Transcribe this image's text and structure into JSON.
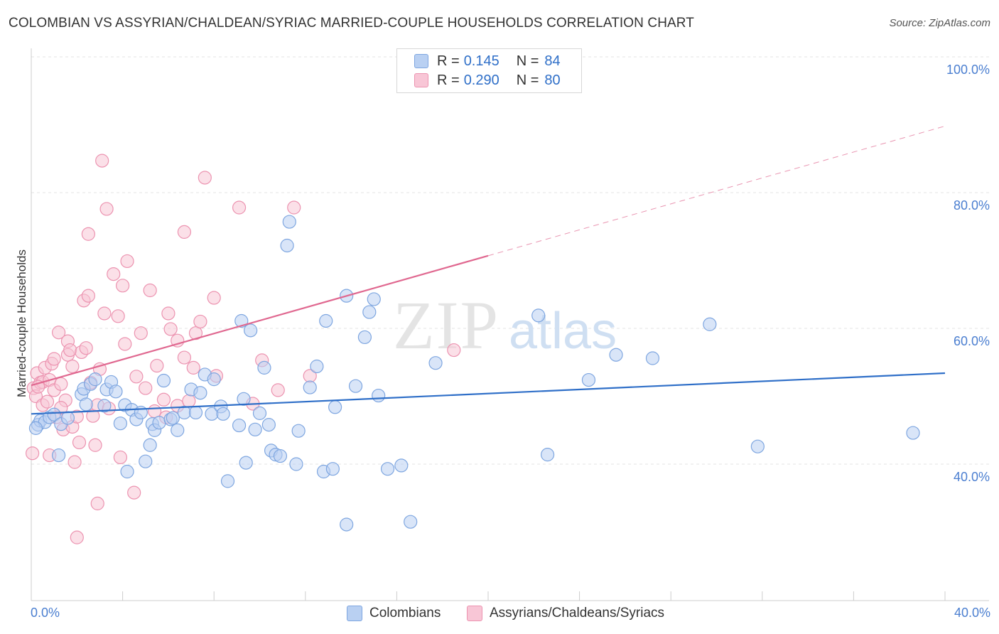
{
  "header": {
    "title": "COLOMBIAN VS ASSYRIAN/CHALDEAN/SYRIAC MARRIED-COUPLE HOUSEHOLDS CORRELATION CHART",
    "source": "Source: ZipAtlas.com"
  },
  "watermark": {
    "zip": "ZIP",
    "atlas": "atlas"
  },
  "colors": {
    "blue_fill": "#b9d0f2",
    "blue_stroke": "#7ea6e0",
    "blue_line": "#2f6fc8",
    "pink_fill": "#f8c6d6",
    "pink_stroke": "#ec93b0",
    "pink_line": "#e06890",
    "tick_text": "#4a7ed0"
  },
  "legend": {
    "rows": [
      {
        "r_label": "R =",
        "r_value": "0.145",
        "n_label": "N =",
        "n_value": "84"
      },
      {
        "r_label": "R =",
        "r_value": "0.290",
        "n_label": "N =",
        "n_value": "80"
      }
    ]
  },
  "bottom_legend": {
    "series1": "Colombians",
    "series2": "Assyrians/Chaldeans/Syriacs"
  },
  "chart_data": {
    "type": "scatter",
    "title": "COLOMBIAN VS ASSYRIAN/CHALDEAN/SYRIAC MARRIED-COUPLE HOUSEHOLDS CORRELATION CHART",
    "xlabel": "",
    "ylabel": "Married-couple Households",
    "xlim": [
      0,
      40
    ],
    "ylim": [
      20,
      103
    ],
    "x_tick_labels": [
      "0.0%",
      "40.0%"
    ],
    "y_tick_labels": [
      "100.0%",
      "80.0%",
      "60.0%",
      "40.0%"
    ],
    "y_ticks": [
      100,
      80,
      60,
      40
    ],
    "grid": true,
    "legend_position": "top-center",
    "series": [
      {
        "name": "Colombians",
        "r": 0.145,
        "n": 84,
        "trend": {
          "x0": 0,
          "y0": 47.4,
          "x1": 40,
          "y1": 53.4,
          "solid_until": 40
        },
        "points": [
          [
            0.3,
            45.8
          ],
          [
            0.4,
            46.4
          ],
          [
            0.6,
            46.2
          ],
          [
            0.8,
            46.9
          ],
          [
            1.0,
            47.3
          ],
          [
            1.2,
            41.3
          ],
          [
            1.3,
            45.9
          ],
          [
            1.6,
            46.8
          ],
          [
            2.2,
            50.3
          ],
          [
            2.3,
            51.1
          ],
          [
            2.4,
            48.8
          ],
          [
            2.6,
            51.8
          ],
          [
            2.8,
            52.5
          ],
          [
            3.2,
            48.6
          ],
          [
            3.3,
            51.0
          ],
          [
            3.5,
            52.1
          ],
          [
            3.7,
            50.7
          ],
          [
            3.9,
            46.0
          ],
          [
            4.1,
            48.7
          ],
          [
            4.2,
            38.9
          ],
          [
            4.4,
            48.0
          ],
          [
            4.6,
            46.6
          ],
          [
            4.8,
            47.6
          ],
          [
            5.0,
            40.4
          ],
          [
            5.2,
            42.8
          ],
          [
            5.3,
            45.9
          ],
          [
            5.4,
            45.0
          ],
          [
            5.6,
            46.1
          ],
          [
            5.8,
            52.3
          ],
          [
            6.1,
            46.6
          ],
          [
            6.2,
            46.8
          ],
          [
            6.4,
            45.0
          ],
          [
            6.7,
            47.6
          ],
          [
            7.0,
            51.0
          ],
          [
            7.2,
            47.6
          ],
          [
            7.4,
            50.5
          ],
          [
            7.6,
            53.2
          ],
          [
            7.9,
            47.4
          ],
          [
            8.0,
            52.5
          ],
          [
            8.3,
            48.5
          ],
          [
            8.4,
            47.4
          ],
          [
            8.6,
            37.5
          ],
          [
            9.1,
            45.7
          ],
          [
            9.2,
            61.1
          ],
          [
            9.4,
            40.2
          ],
          [
            9.6,
            59.7
          ],
          [
            9.8,
            45.1
          ],
          [
            10.0,
            47.5
          ],
          [
            10.2,
            54.2
          ],
          [
            10.4,
            45.8
          ],
          [
            10.5,
            42.0
          ],
          [
            10.7,
            41.4
          ],
          [
            10.9,
            41.2
          ],
          [
            11.2,
            72.2
          ],
          [
            11.3,
            75.7
          ],
          [
            11.6,
            40.0
          ],
          [
            11.7,
            44.9
          ],
          [
            12.2,
            51.3
          ],
          [
            12.5,
            54.4
          ],
          [
            12.8,
            38.9
          ],
          [
            12.9,
            61.1
          ],
          [
            13.2,
            39.3
          ],
          [
            13.3,
            48.4
          ],
          [
            13.8,
            64.8
          ],
          [
            14.2,
            51.5
          ],
          [
            14.6,
            58.7
          ],
          [
            14.8,
            62.4
          ],
          [
            15.0,
            64.3
          ],
          [
            15.2,
            50.1
          ],
          [
            15.6,
            39.3
          ],
          [
            16.2,
            39.8
          ],
          [
            16.6,
            31.5
          ],
          [
            17.7,
            54.9
          ],
          [
            22.2,
            61.9
          ],
          [
            22.6,
            41.4
          ],
          [
            24.4,
            52.4
          ],
          [
            25.6,
            56.1
          ],
          [
            27.2,
            55.6
          ],
          [
            29.7,
            60.6
          ],
          [
            31.8,
            42.6
          ],
          [
            38.6,
            44.6
          ],
          [
            0.2,
            45.3
          ],
          [
            9.3,
            49.6
          ],
          [
            13.8,
            31.1
          ]
        ]
      },
      {
        "name": "Assyrians/Chaldeans/Syriacs",
        "r": 0.29,
        "n": 80,
        "trend": {
          "x0": 0,
          "y0": 51.6,
          "x1": 40,
          "y1": 89.8,
          "solid_until": 20
        },
        "points": [
          [
            0.05,
            41.6
          ],
          [
            0.1,
            51.2
          ],
          [
            0.2,
            50.0
          ],
          [
            0.25,
            53.4
          ],
          [
            0.4,
            52.0
          ],
          [
            0.5,
            48.7
          ],
          [
            0.5,
            52.1
          ],
          [
            0.6,
            54.2
          ],
          [
            0.7,
            49.2
          ],
          [
            0.8,
            41.3
          ],
          [
            0.8,
            52.4
          ],
          [
            0.9,
            54.8
          ],
          [
            1.0,
            55.5
          ],
          [
            1.0,
            50.9
          ],
          [
            1.1,
            46.9
          ],
          [
            1.2,
            59.4
          ],
          [
            1.3,
            51.8
          ],
          [
            1.4,
            45.1
          ],
          [
            1.5,
            49.4
          ],
          [
            1.6,
            58.1
          ],
          [
            1.6,
            56.1
          ],
          [
            1.7,
            56.8
          ],
          [
            1.8,
            54.4
          ],
          [
            1.8,
            45.5
          ],
          [
            1.9,
            40.3
          ],
          [
            2.0,
            29.2
          ],
          [
            2.0,
            47.0
          ],
          [
            2.1,
            43.2
          ],
          [
            2.2,
            56.5
          ],
          [
            2.3,
            64.1
          ],
          [
            2.4,
            57.1
          ],
          [
            2.5,
            73.9
          ],
          [
            2.5,
            64.8
          ],
          [
            2.6,
            52.0
          ],
          [
            2.7,
            47.1
          ],
          [
            2.8,
            42.8
          ],
          [
            2.9,
            34.2
          ],
          [
            2.9,
            48.7
          ],
          [
            3.0,
            54.0
          ],
          [
            3.1,
            84.7
          ],
          [
            3.2,
            62.2
          ],
          [
            3.3,
            77.6
          ],
          [
            3.4,
            48.2
          ],
          [
            3.6,
            68.0
          ],
          [
            3.8,
            61.8
          ],
          [
            3.9,
            41.0
          ],
          [
            4.0,
            66.3
          ],
          [
            4.1,
            57.7
          ],
          [
            4.2,
            69.9
          ],
          [
            4.5,
            35.8
          ],
          [
            4.6,
            52.9
          ],
          [
            4.8,
            59.3
          ],
          [
            5.0,
            51.2
          ],
          [
            5.2,
            65.6
          ],
          [
            5.4,
            47.8
          ],
          [
            5.5,
            54.5
          ],
          [
            5.8,
            49.5
          ],
          [
            6.0,
            62.2
          ],
          [
            6.1,
            59.9
          ],
          [
            6.4,
            58.2
          ],
          [
            6.4,
            48.6
          ],
          [
            6.7,
            55.7
          ],
          [
            6.7,
            74.2
          ],
          [
            6.9,
            49.3
          ],
          [
            7.1,
            54.2
          ],
          [
            7.2,
            59.3
          ],
          [
            7.4,
            61.0
          ],
          [
            7.6,
            82.2
          ],
          [
            8.0,
            64.5
          ],
          [
            8.1,
            53.0
          ],
          [
            9.1,
            77.8
          ],
          [
            9.7,
            48.9
          ],
          [
            10.1,
            55.3
          ],
          [
            10.8,
            50.9
          ],
          [
            11.5,
            77.8
          ],
          [
            12.2,
            53.0
          ],
          [
            18.5,
            56.8
          ],
          [
            5.9,
            46.9
          ],
          [
            0.3,
            51.4
          ],
          [
            1.3,
            48.3
          ]
        ]
      }
    ]
  }
}
